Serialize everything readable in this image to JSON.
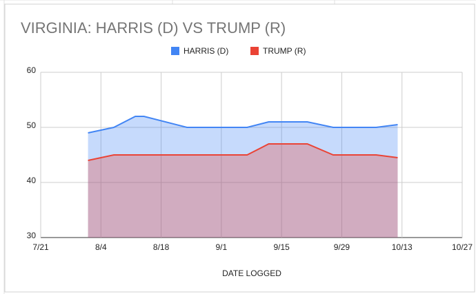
{
  "chart_data": {
    "type": "area",
    "title": "VIRGINIA: HARRIS (D) VS TRUMP (R)",
    "x_label": "DATE LOGGED",
    "x": [
      "8/1",
      "8/7",
      "8/12",
      "8/14",
      "8/24",
      "9/7",
      "9/12",
      "9/21",
      "9/27",
      "10/7",
      "10/12"
    ],
    "series": [
      {
        "name": "HARRIS (D)",
        "color": "#4285f4",
        "values": [
          49,
          50,
          52,
          52,
          50,
          50,
          51,
          51,
          50,
          50,
          50.5
        ]
      },
      {
        "name": "TRUMP (R)",
        "color": "#ea4335",
        "values": [
          44,
          45,
          45,
          45,
          45,
          45,
          47,
          47,
          45,
          45,
          44.5
        ]
      }
    ],
    "xlim": [
      "7/21",
      "10/27"
    ],
    "xticks": [
      "7/21",
      "8/4",
      "8/18",
      "9/1",
      "9/15",
      "9/29",
      "10/13",
      "10/27"
    ],
    "ylim": [
      30,
      60
    ],
    "yticks": [
      30,
      40,
      50,
      60
    ],
    "grid": true,
    "legend": "top"
  }
}
